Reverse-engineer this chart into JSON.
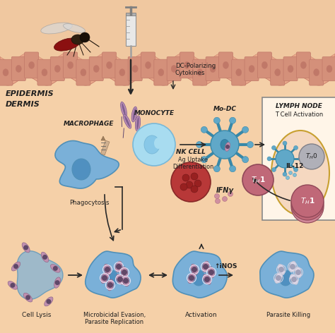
{
  "bg_color": "#F5D0A8",
  "skin_upper_color": "#F0C8A0",
  "epi_band_color": "#E8A88A",
  "epi_cell_color": "#D4907A",
  "epi_cell_edge": "#C07868",
  "dermis_bg": "#F5D0A8",
  "lymph_border": "#C8A030",
  "lymph_bg": "#FFF5E8",
  "lymph_inner": "#F5D8C0",
  "mac_color": "#7AB0D8",
  "mac_edge": "#5090B8",
  "mac_nuc_color": "#5090C0",
  "mono_color": "#A8DCF0",
  "mono_edge": "#78B8D8",
  "mono_nuc": "#78C0E0",
  "dc_color": "#60A8C8",
  "dc_edge": "#3888A8",
  "nk_color": "#B83838",
  "nk_edge": "#882828",
  "th1_color": "#C06878",
  "th1_edge": "#904858",
  "th0_color": "#B0B0B8",
  "th0_edge": "#808088",
  "para_color": "#C090B0",
  "para_edge": "#906888",
  "para_dark": "#604868",
  "arrow_color": "#282828",
  "text_color": "#202020",
  "labels": {
    "epidermis": "EPIDERMIS",
    "dermis": "DERMIS",
    "monocyte": "MONOCYTE",
    "modc": "Mo-DC",
    "macrophage": "MACROPHAGE",
    "nk_cell": "NK CELL",
    "lymph_node_1": "LYMPH NODE",
    "lymph_node_2": "T Cell Activation",
    "dc_cytokines": "DC-Polarizing\nCytokines",
    "ag_uptake": "Ag Uptake\nDifferentiation",
    "il12": "IL-12",
    "ifny": "IFNγ",
    "inos": "↑iNOS",
    "phagocytosis": "Phagocytosis",
    "cell_lysis": "Cell Lysis",
    "microbicidal": "Microbicidal Evasion,\nParasite Replication",
    "activation": "Activation",
    "parasite_killing": "Parasite Killing"
  },
  "epi_wave_amplitude": 6,
  "epi_wave_period": 55
}
